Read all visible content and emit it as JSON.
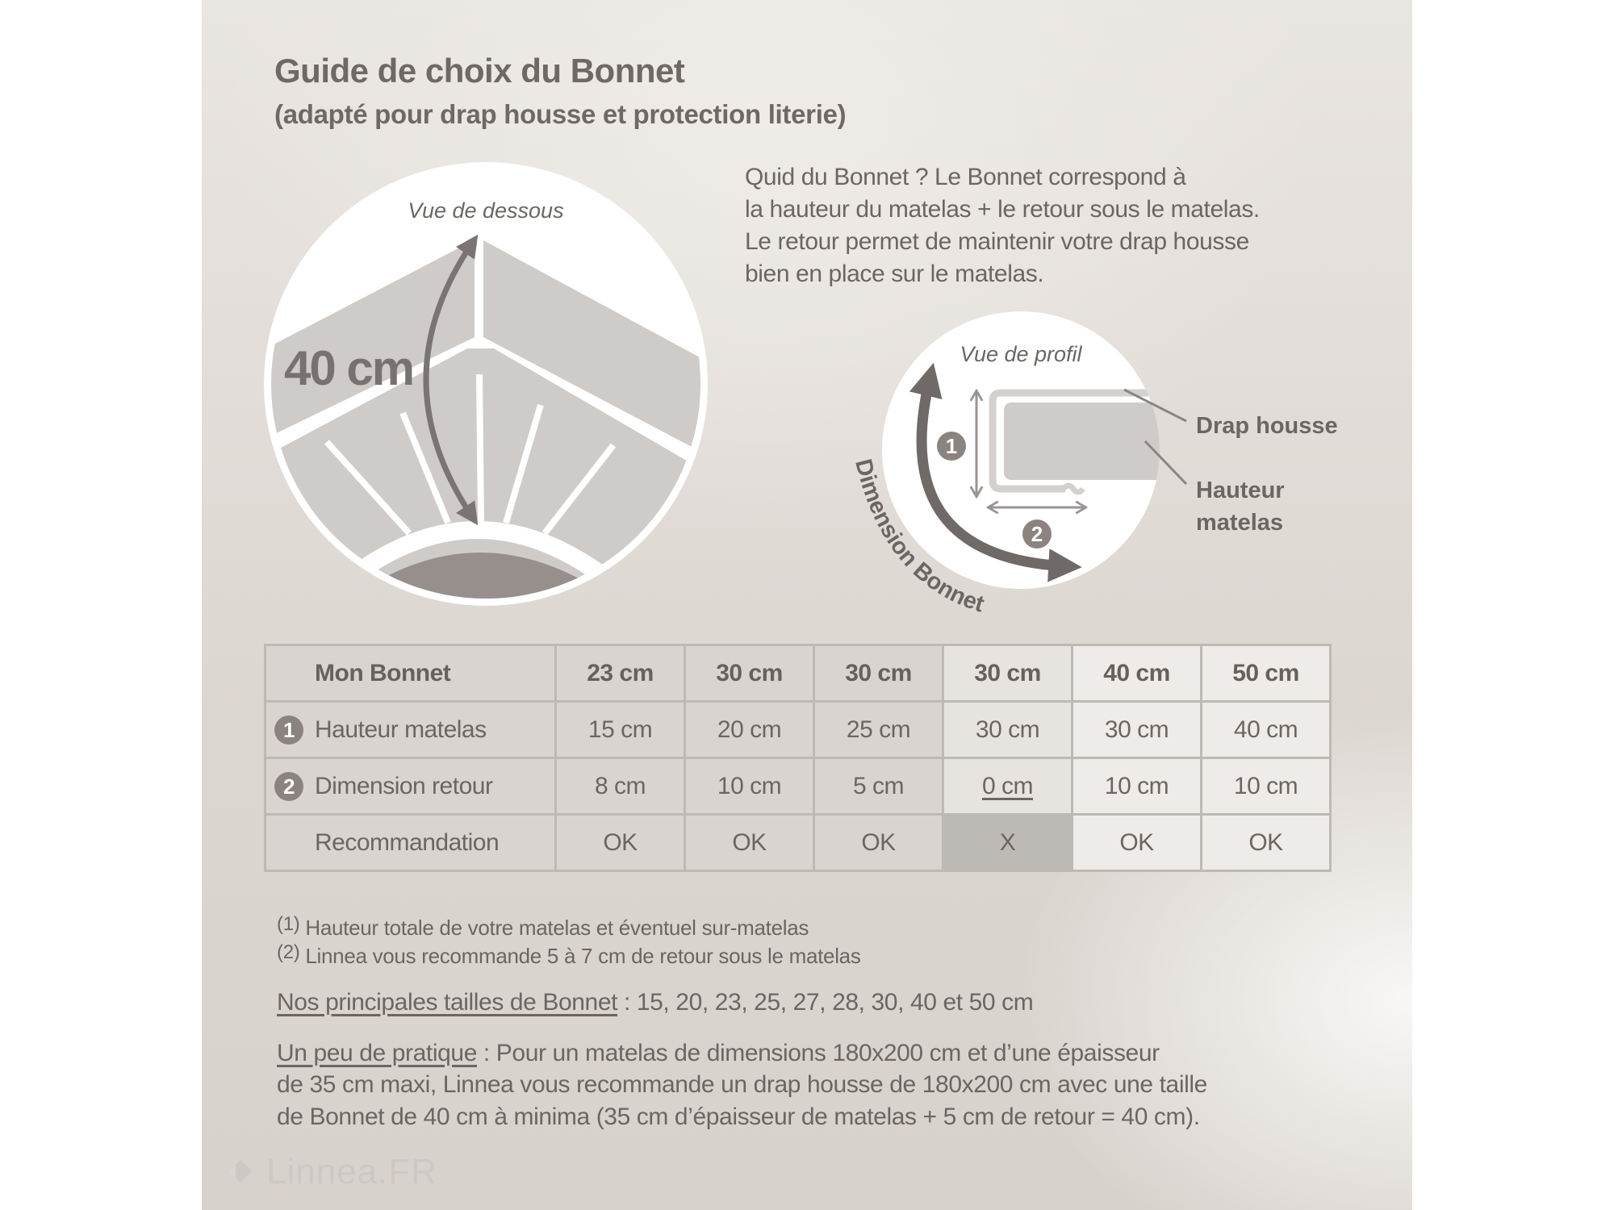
{
  "title": {
    "line1": "Guide de choix du Bonnet",
    "line2": "(adapté pour drap housse et protection literie)"
  },
  "intro": [
    "Quid du Bonnet ? Le Bonnet correspond à",
    "la hauteur du matelas + le retour sous le matelas.",
    "Le retour permet de maintenir votre drap housse",
    "bien en place sur le matelas."
  ],
  "diagram_bottom_view": {
    "caption": "Vue de dessous",
    "measure": "40 cm"
  },
  "diagram_profile_view": {
    "caption": "Vue de profil",
    "badge1": "1",
    "badge2": "2",
    "curve_label": "Dimension Bonnet",
    "label_sheet": "Drap housse",
    "label_height_1": "Hauteur",
    "label_height_2": "matelas"
  },
  "colors": {
    "background": "#dcd6d0",
    "text": "#6b6662",
    "shape_gray": "#cfcbc8",
    "arrow": "#7a7574",
    "badge": "#8a8380",
    "not_recommended_cell": "#bdb9b5"
  },
  "table": {
    "header": {
      "label": "Mon Bonnet",
      "values": [
        "23 cm",
        "30 cm",
        "30 cm",
        "30 cm",
        "40 cm",
        "50 cm"
      ]
    },
    "rows": [
      {
        "badge": "1",
        "label": "Hauteur matelas",
        "values": [
          "15 cm",
          "20 cm",
          "25 cm",
          "30 cm",
          "30 cm",
          "40 cm"
        ]
      },
      {
        "badge": "2",
        "label": "Dimension retour",
        "values": [
          "8 cm",
          "10 cm",
          "5 cm",
          "0 cm",
          "10 cm",
          "10 cm"
        ]
      },
      {
        "badge": "",
        "label": "Recommandation",
        "values": [
          "OK",
          "OK",
          "OK",
          "X",
          "OK",
          "OK"
        ]
      }
    ]
  },
  "footnotes": [
    {
      "mark": "(1)",
      "text": "Hauteur totale de votre matelas et éventuel sur-matelas"
    },
    {
      "mark": "(2)",
      "text": "Linnea vous recommande 5 à 7 cm de retour sous le matelas"
    }
  ],
  "sizes": {
    "label": "Nos principales tailles de Bonnet",
    "text": " : 15, 20, 23, 25, 27, 28, 30, 40 et 50 cm"
  },
  "practice": {
    "label": "Un peu de pratique",
    "line1": " : Pour un matelas de dimensions 180x200 cm et d’une épaisseur",
    "line2": "de 35 cm maxi, Linnea vous recommande un drap housse de 180x200 cm avec une taille",
    "line3": "de Bonnet de 40 cm à minima (35 cm d’épaisseur de matelas + 5 cm de retour = 40 cm)."
  },
  "logo": {
    "text": "Linnea.FR"
  }
}
